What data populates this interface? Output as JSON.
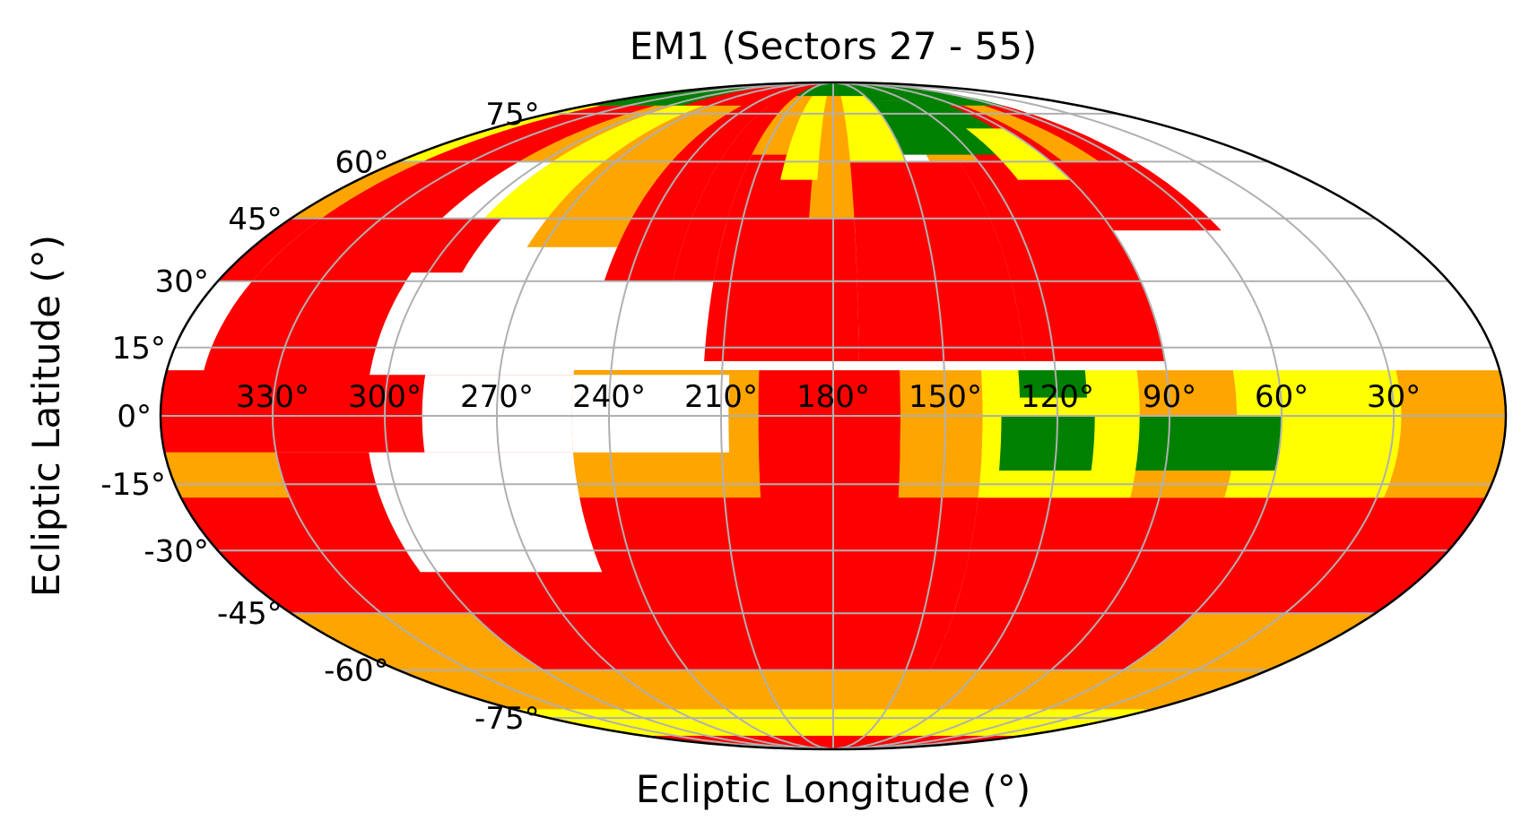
{
  "chart_data": {
    "type": "heatmap",
    "projection": "mollweide",
    "title": "EM1 (Sectors 27 - 55)",
    "xlabel": "Ecliptic Longitude (°)",
    "ylabel": "Ecliptic Latitude (°)",
    "grid": true,
    "xlim": [
      0,
      360
    ],
    "ylim": [
      -90,
      90
    ],
    "x_direction": "decreasing-left-to-right",
    "lon_ticks": [
      330,
      300,
      270,
      240,
      210,
      180,
      150,
      120,
      90,
      60,
      30
    ],
    "lon_tick_labels": [
      "330°",
      "300°",
      "270°",
      "240°",
      "210°",
      "180°",
      "150°",
      "120°",
      "90°",
      "60°",
      "30°"
    ],
    "lat_ticks": [
      75,
      60,
      45,
      30,
      15,
      0,
      -15,
      -30,
      -45,
      -60,
      -75
    ],
    "lat_tick_labels": [
      "75°",
      "60°",
      "45°",
      "30°",
      "15°",
      "0°",
      "-15°",
      "-30°",
      "-45°",
      "-60°",
      "-75°"
    ],
    "colors": {
      "coverage_1": "#ff0000",
      "coverage_2": "#ffa500",
      "coverage_3": "#ffff00",
      "coverage_4": "#008000",
      "coverage_5": "#0000cd",
      "grid": "#b0b0b0",
      "outline": "#000000"
    },
    "regions": [
      {
        "level": 4,
        "lon": [
          0,
          360
        ],
        "lat": [
          78,
          90
        ]
      },
      {
        "level": 4,
        "lon": [
          0,
          360
        ],
        "lat": [
          -90,
          -82
        ]
      },
      {
        "level": 5,
        "lon": [
          0,
          360
        ],
        "lat": [
          -90,
          -85
        ]
      },
      {
        "level": 1,
        "lon": [
          227,
          247
        ],
        "lat": [
          30,
          90
        ]
      },
      {
        "level": 1,
        "lon": [
          227,
          290
        ],
        "lat": [
          78,
          90
        ]
      },
      {
        "level": 1,
        "lon": [
          215,
          227
        ],
        "lat": [
          30,
          90
        ]
      },
      {
        "level": 2,
        "lon": [
          247,
          275
        ],
        "lat": [
          38,
          78
        ]
      },
      {
        "level": 3,
        "lon": [
          275,
          296
        ],
        "lat": [
          45,
          78
        ]
      },
      {
        "level": 2,
        "lon": [
          296,
          310
        ],
        "lat": [
          60,
          78
        ]
      },
      {
        "level": 1,
        "lon": [
          310,
          330
        ],
        "lat": [
          35,
          78
        ]
      },
      {
        "level": 1,
        "lon": [
          330,
          350
        ],
        "lat": [
          30,
          78
        ]
      },
      {
        "level": 1,
        "lon": [
          290,
          330
        ],
        "lat": [
          30,
          45
        ]
      },
      {
        "level": 1,
        "lon": [
          290,
          350
        ],
        "lat": [
          8,
          30
        ]
      },
      {
        "level": 1,
        "lon": [
          290,
          335
        ],
        "lat": [
          20,
          30
        ]
      },
      {
        "level": 3,
        "lon": [
          350,
          360
        ],
        "lat": [
          60,
          78
        ]
      },
      {
        "level": 2,
        "lon": [
          350,
          360
        ],
        "lat": [
          45,
          60
        ]
      },
      {
        "level": 1,
        "lon": [
          350,
          360
        ],
        "lat": [
          30,
          45
        ]
      },
      {
        "level": 1,
        "lon": [
          173,
          215
        ],
        "lat": [
          12,
          82
        ]
      },
      {
        "level": 2,
        "lon": [
          173,
          188
        ],
        "lat": [
          45,
          82
        ]
      },
      {
        "level": 3,
        "lon": [
          186,
          200
        ],
        "lat": [
          55,
          82
        ]
      },
      {
        "level": 2,
        "lon": [
          200,
          215
        ],
        "lat": [
          62,
          82
        ]
      },
      {
        "level": 3,
        "lon": [
          150,
          173
        ],
        "lat": [
          60,
          82
        ]
      },
      {
        "level": 2,
        "lon": [
          150,
          173
        ],
        "lat": [
          45,
          60
        ]
      },
      {
        "level": 1,
        "lon": [
          128,
          173
        ],
        "lat": [
          12,
          60
        ]
      },
      {
        "level": 1,
        "lon": [
          90,
          128
        ],
        "lat": [
          12,
          78
        ]
      },
      {
        "level": 2,
        "lon": [
          120,
          140
        ],
        "lat": [
          60,
          80
        ]
      },
      {
        "level": 4,
        "lon": [
          95,
          150
        ],
        "lat": [
          62,
          80
        ]
      },
      {
        "level": 3,
        "lon": [
          90,
          110
        ],
        "lat": [
          55,
          70
        ]
      },
      {
        "level": 1,
        "lon": [
          55,
          90
        ],
        "lat": [
          42,
          78
        ]
      },
      {
        "level": 2,
        "lon": [
          70,
          85
        ],
        "lat": [
          60,
          78
        ]
      },
      {
        "level": 1,
        "lon": [
          140,
          360
        ],
        "lat": [
          -90,
          -8
        ]
      },
      {
        "level": 1,
        "lon": [
          0,
          140
        ],
        "lat": [
          -90,
          -18
        ]
      },
      {
        "level": 1,
        "lon": [
          200,
          360
        ],
        "lat": [
          -8,
          10
        ]
      },
      {
        "level": 2,
        "lon": [
          200,
          250
        ],
        "lat": [
          -18,
          10
        ]
      },
      {
        "level": 2,
        "lon": [
          330,
          360
        ],
        "lat": [
          -18,
          -8
        ]
      },
      {
        "level": 1,
        "lon": [
          162,
          200
        ],
        "lat": [
          -18,
          10
        ]
      },
      {
        "level": 2,
        "lon": [
          140,
          162
        ],
        "lat": [
          -18,
          10
        ]
      },
      {
        "level": 3,
        "lon": [
          98,
          140
        ],
        "lat": [
          -18,
          10
        ]
      },
      {
        "level": 2,
        "lon": [
          72,
          98
        ],
        "lat": [
          -18,
          10
        ]
      },
      {
        "level": 3,
        "lon": [
          28,
          72
        ],
        "lat": [
          -18,
          10
        ]
      },
      {
        "level": 2,
        "lon": [
          0,
          28
        ],
        "lat": [
          -18,
          10
        ]
      },
      {
        "level": 4,
        "lon": [
          110,
          135
        ],
        "lat": [
          -12,
          0
        ]
      },
      {
        "level": 4,
        "lon": [
          60,
          98
        ],
        "lat": [
          -12,
          0
        ]
      },
      {
        "level": 4,
        "lon": [
          112,
          130
        ],
        "lat": [
          4,
          10
        ]
      },
      {
        "level": 2,
        "lon": [
          0,
          360
        ],
        "lat": [
          -82,
          -60
        ]
      },
      {
        "level": 3,
        "lon": [
          0,
          360
        ],
        "lat": [
          -82,
          -72
        ]
      },
      {
        "level": 2,
        "lon": [
          0,
          60
        ],
        "lat": [
          -60,
          -45
        ]
      },
      {
        "level": 2,
        "lon": [
          300,
          360
        ],
        "lat": [
          -60,
          -45
        ]
      }
    ],
    "gaps": [
      {
        "lon": [
          250,
          305
        ],
        "lat": [
          9,
          32
        ]
      },
      {
        "lon": [
          208,
          250
        ],
        "lat": [
          -8,
          9
        ]
      },
      {
        "lon": [
          250,
          305
        ],
        "lat": [
          -35,
          -8
        ]
      },
      {
        "lon": [
          250,
          290
        ],
        "lat": [
          -8,
          9
        ]
      },
      {
        "lon": [
          0,
          55
        ],
        "lat": [
          12,
          90
        ]
      },
      {
        "lon": [
          55,
          90
        ],
        "lat": [
          12,
          42
        ]
      }
    ]
  }
}
